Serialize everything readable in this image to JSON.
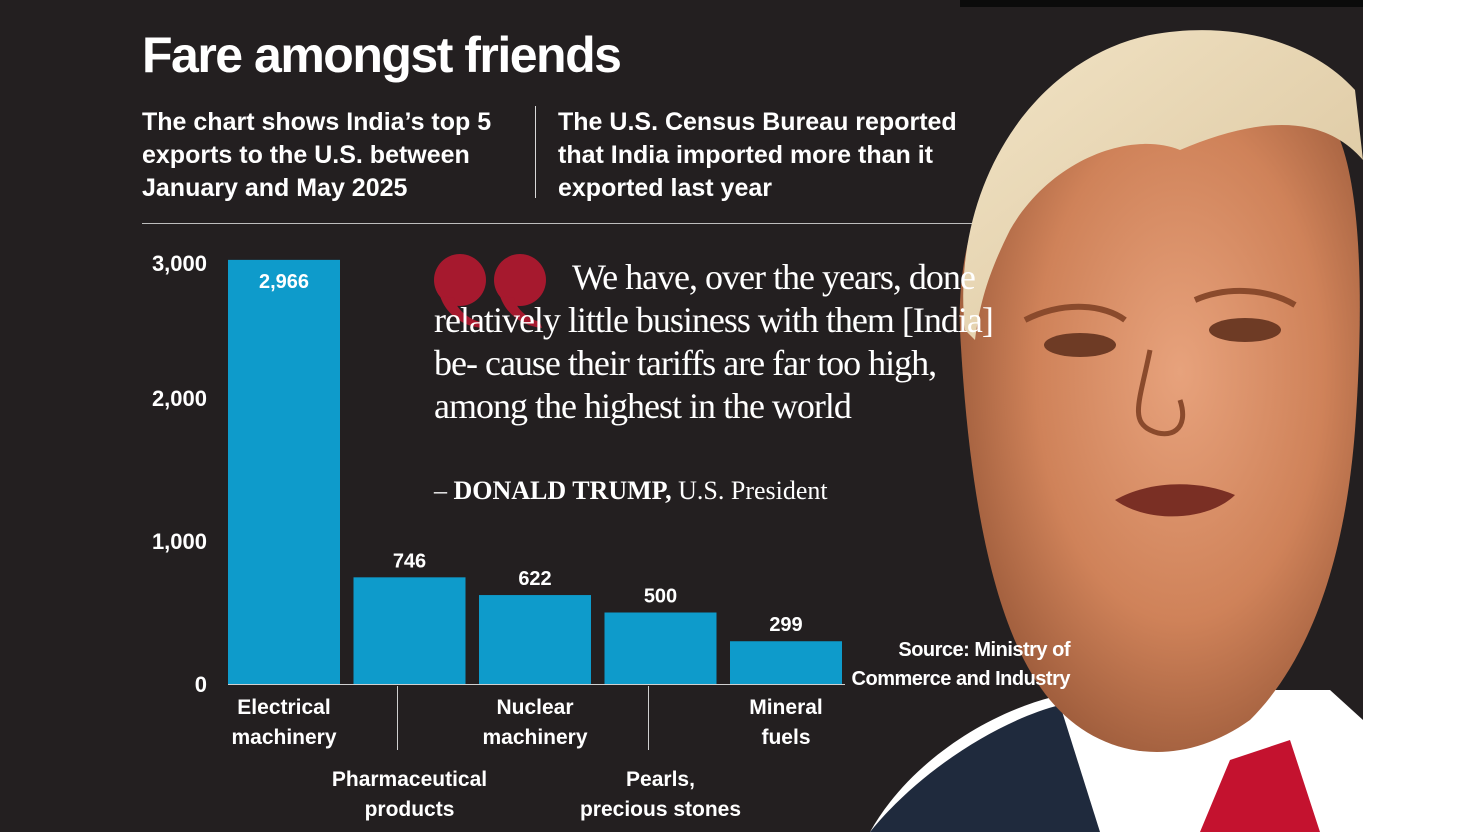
{
  "headline": "Fare amongst friends",
  "deck": {
    "left": "The chart shows India’s top 5 exports to the U.S. between January and May 2025",
    "right": "The U.S. Census Bureau reported that India imported more than it exported last year"
  },
  "quote": {
    "text": "We have, over the years, done relatively little business with them [India] be- cause their tariffs are far too high, among the highest in the world",
    "attribution_prefix": "– ",
    "attribution_name": "DONALD TRUMP,",
    "attribution_title": " U.S. President"
  },
  "source": "Source: Ministry of Commerce and Industry",
  "colors": {
    "background": "#231f20",
    "bar": "#0e9bcb",
    "quote_mark": "#a6192e",
    "text": "#ffffff"
  },
  "chart_data": {
    "type": "bar",
    "title": "",
    "xlabel": "",
    "ylabel": "",
    "ylim": [
      0,
      3000
    ],
    "yticks": [
      {
        "value": 0,
        "label": "0"
      },
      {
        "value": 1000,
        "label": "1,000"
      },
      {
        "value": 2000,
        "label": "2,000"
      },
      {
        "value": 3000,
        "label": "3,000"
      }
    ],
    "grid": false,
    "legend": "none",
    "categories": [
      {
        "lines": [
          "Electrical",
          "machinery"
        ],
        "row": "upper"
      },
      {
        "lines": [
          "Pharmaceutical",
          "products"
        ],
        "row": "lower"
      },
      {
        "lines": [
          "Nuclear",
          "machinery"
        ],
        "row": "upper"
      },
      {
        "lines": [
          "Pearls,",
          "precious stones"
        ],
        "row": "lower"
      },
      {
        "lines": [
          "Mineral",
          "fuels"
        ],
        "row": "upper"
      }
    ],
    "values": [
      2966,
      746,
      622,
      500,
      299
    ],
    "value_labels": [
      "2,966",
      "746",
      "622",
      "500",
      "299"
    ]
  },
  "photo": {
    "icon": "portrait-photo-icon"
  }
}
